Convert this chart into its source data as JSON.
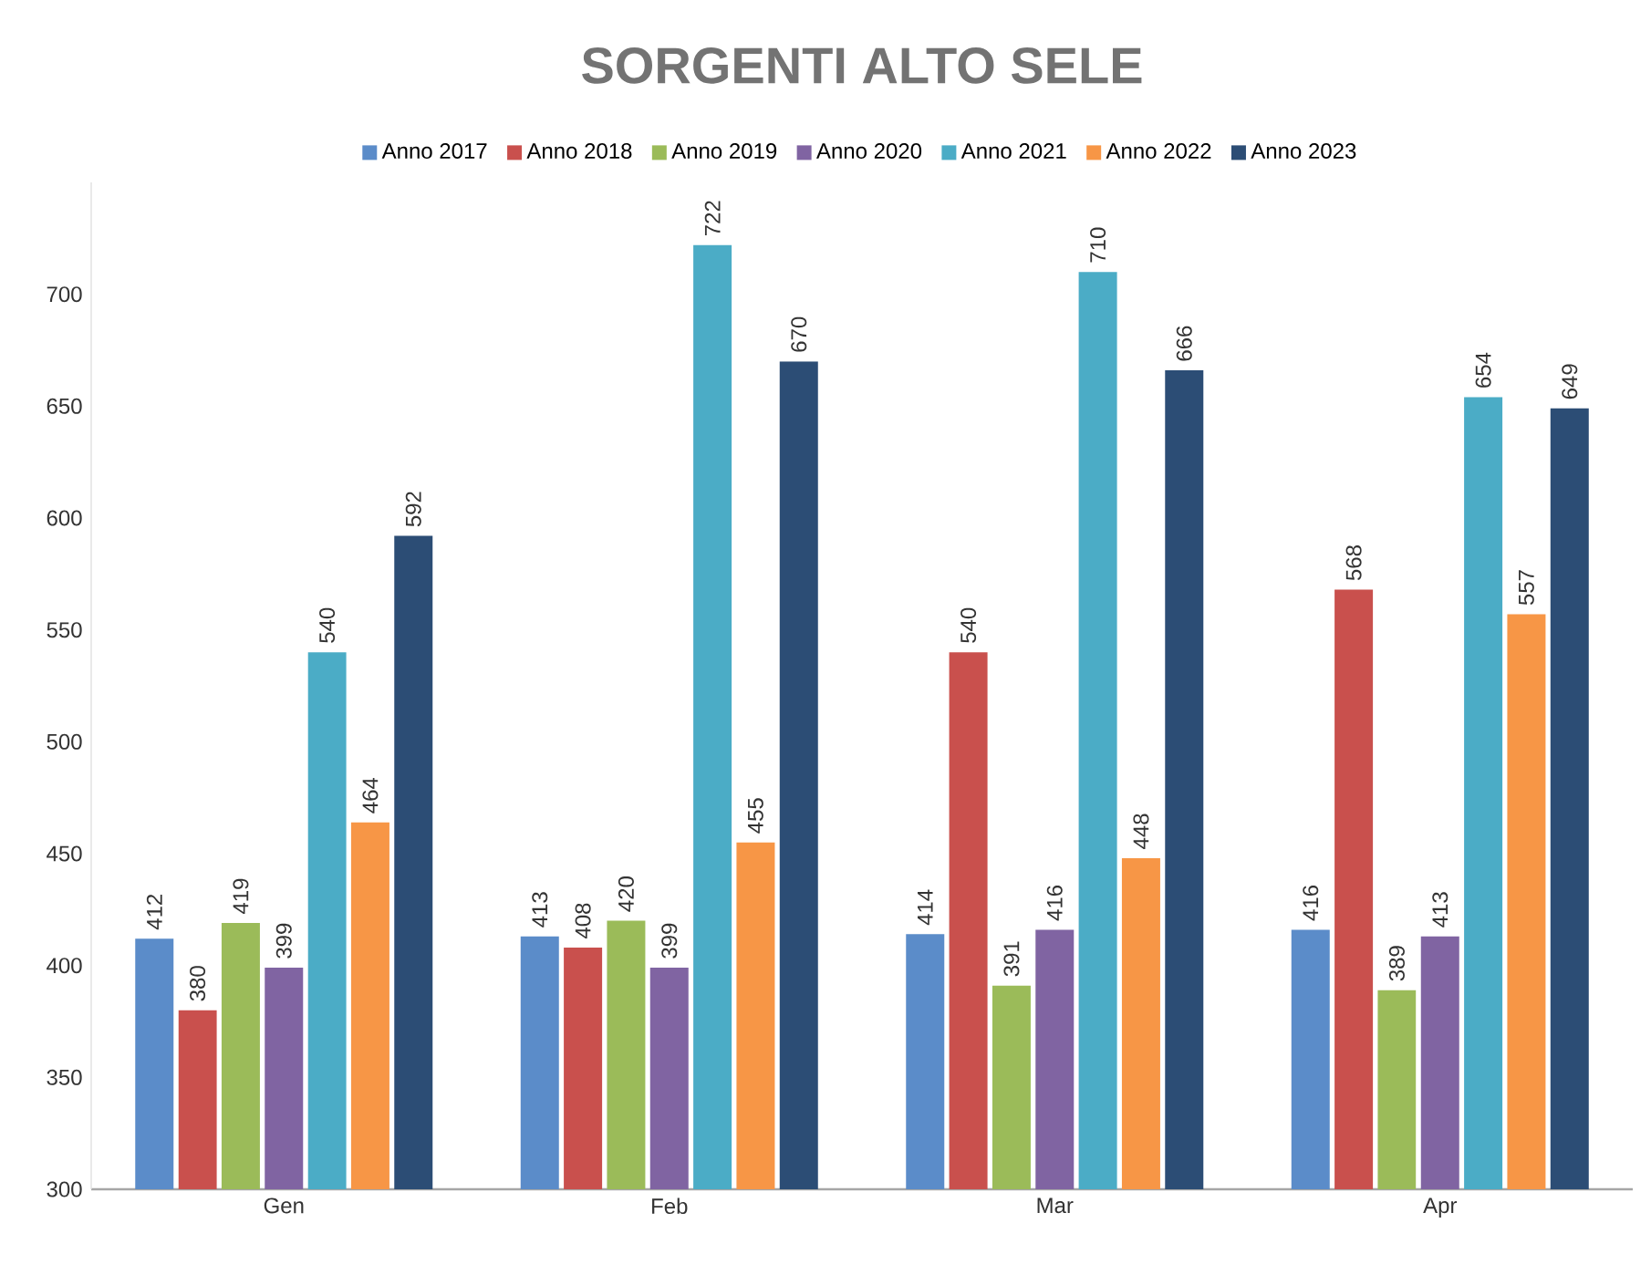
{
  "chart_data": {
    "type": "bar",
    "title": "SORGENTI ALTO SELE",
    "categories": [
      "Gen",
      "Feb",
      "Mar",
      "Apr"
    ],
    "series": [
      {
        "name": "Anno 2017",
        "color": "#5b8cc9",
        "values": [
          412,
          413,
          414,
          416
        ]
      },
      {
        "name": "Anno 2018",
        "color": "#c9504d",
        "values": [
          380,
          408,
          540,
          568
        ]
      },
      {
        "name": "Anno 2019",
        "color": "#9bbb59",
        "values": [
          419,
          420,
          391,
          389
        ]
      },
      {
        "name": "Anno 2020",
        "color": "#8064a2",
        "values": [
          399,
          399,
          416,
          413
        ]
      },
      {
        "name": "Anno 2021",
        "color": "#4bacc6",
        "values": [
          540,
          722,
          710,
          654
        ]
      },
      {
        "name": "Anno 2022",
        "color": "#f79646",
        "values": [
          464,
          455,
          448,
          557
        ]
      },
      {
        "name": "Anno 2023",
        "color": "#2c4d75",
        "values": [
          592,
          670,
          666,
          649
        ]
      }
    ],
    "ylim": [
      300,
      750
    ],
    "yticks": [
      300,
      350,
      400,
      450,
      500,
      550,
      600,
      650,
      700
    ],
    "data_labels": true,
    "legend": "top",
    "grid": false
  }
}
